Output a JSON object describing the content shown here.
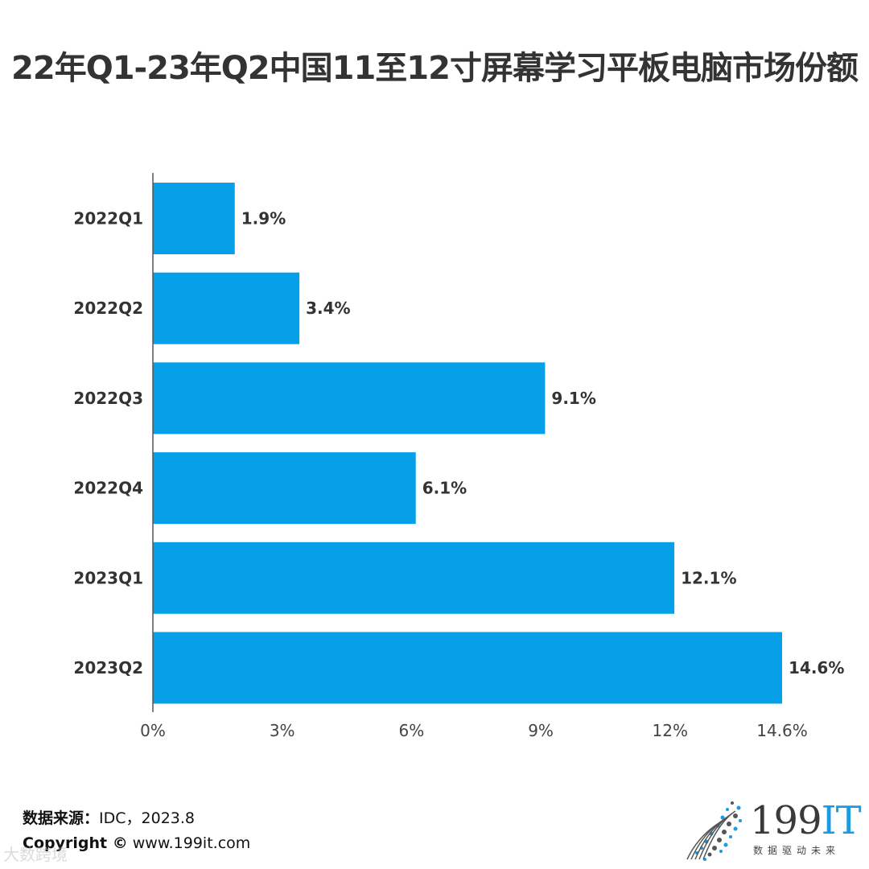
{
  "title": "22年Q1-23年Q2中国11至12寸屏幕学习平板电脑市场份额",
  "chart_data": {
    "type": "bar",
    "orientation": "horizontal",
    "categories": [
      "2022Q1",
      "2022Q2",
      "2022Q3",
      "2022Q4",
      "2023Q1",
      "2023Q2"
    ],
    "values": [
      1.9,
      3.4,
      9.1,
      6.1,
      12.1,
      14.6
    ],
    "value_labels": [
      "1.9%",
      "3.4%",
      "9.1%",
      "6.1%",
      "12.1%",
      "14.6%"
    ],
    "x_ticks": [
      0,
      3,
      6,
      9,
      12,
      14.6
    ],
    "x_tick_labels": [
      "0%",
      "3%",
      "6%",
      "9%",
      "12%",
      "14.6%"
    ],
    "xlim": [
      0,
      14.6
    ],
    "bar_color": "#05a0e8",
    "grid": false
  },
  "footer": {
    "source_label": "数据来源：",
    "source_value": "IDC，2023.8",
    "copyright_label": "Copyright ©",
    "copyright_value": " www.199it.com"
  },
  "watermark": "大数跨境",
  "logo": {
    "name_prefix": "199",
    "name_suffix": "IT",
    "slogan": "数据驱动未来",
    "dot_color": "#1a9be0"
  }
}
